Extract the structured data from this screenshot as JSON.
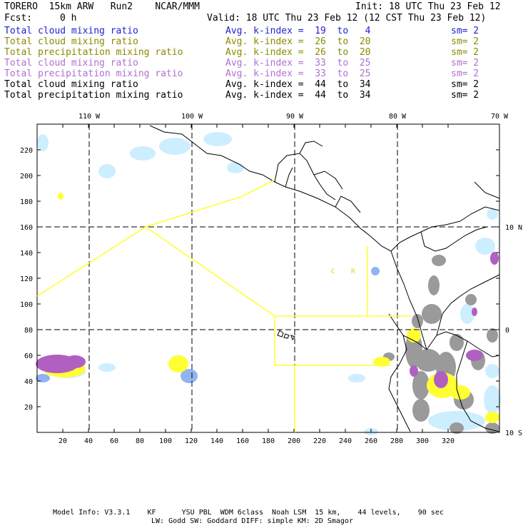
{
  "header": {
    "title_left": "TORERO  15km ARW   Run2    NCAR/MMM",
    "init": "Init: 18 UTC Thu 23 Feb 12",
    "fcst_label": "Fcst:",
    "fcst_value": "0 h",
    "valid": "Valid: 18 UTC Thu 23 Feb 12 (12 CST Thu 23 Feb 12)"
  },
  "legend": [
    {
      "field": "Total cloud mixing ratio",
      "avg": "Avg. k-index =  19  to   4",
      "sm": "sm= 2",
      "color": "#1f1fd0"
    },
    {
      "field": "Total cloud mixing ratio",
      "avg": "Avg. k-index =  26  to  20",
      "sm": "sm= 2",
      "color": "#8a8a00"
    },
    {
      "field": "Total precipitation mixing ratio",
      "avg": "Avg. k-index =  26  to  20",
      "sm": "sm= 2",
      "color": "#8a8a00"
    },
    {
      "field": "Total cloud mixing ratio",
      "avg": "Avg. k-index =  33  to  25",
      "sm": "sm= 2",
      "color": "#b070d0"
    },
    {
      "field": "Total precipitation mixing ratio",
      "avg": "Avg. k-index =  33  to  25",
      "sm": "sm= 2",
      "color": "#b070d0"
    },
    {
      "field": "Total cloud mixing ratio",
      "avg": "Avg. k-index =  44  to  34",
      "sm": "sm= 2",
      "color": "#000000"
    },
    {
      "field": "Total precipitation mixing ratio",
      "avg": "Avg. k-index =  44  to  34",
      "sm": "sm= 2",
      "color": "#000000"
    }
  ],
  "map": {
    "x_ticks": [
      20,
      40,
      60,
      80,
      100,
      120,
      140,
      160,
      180,
      200,
      220,
      240,
      260,
      280,
      300,
      320
    ],
    "y_ticks": [
      20,
      40,
      60,
      80,
      100,
      120,
      140,
      160,
      180,
      200,
      220
    ],
    "lon_labels": [
      "110 W",
      "100 W",
      "90 W",
      "80 W",
      "70 W"
    ],
    "lat_labels": [
      "10 N",
      "0",
      "10 S"
    ],
    "region_labels": [
      "C",
      "R"
    ],
    "colors": {
      "yellow": "#ffff33",
      "purple": "#b060c0",
      "lightblue": "#cdeeff",
      "blue": "#8fb4f0",
      "gray": "#9a9a9a",
      "coast": "#000000",
      "box": "#ffff33"
    }
  },
  "footer": {
    "line1": "Model Info: V3.3.1    KF      YSU PBL  WDM 6class  Noah LSM  15 km,    44 levels,    90 sec",
    "line2": "LW: Godd SW: Goddard DIFF: simple KM: 2D Smagor"
  }
}
